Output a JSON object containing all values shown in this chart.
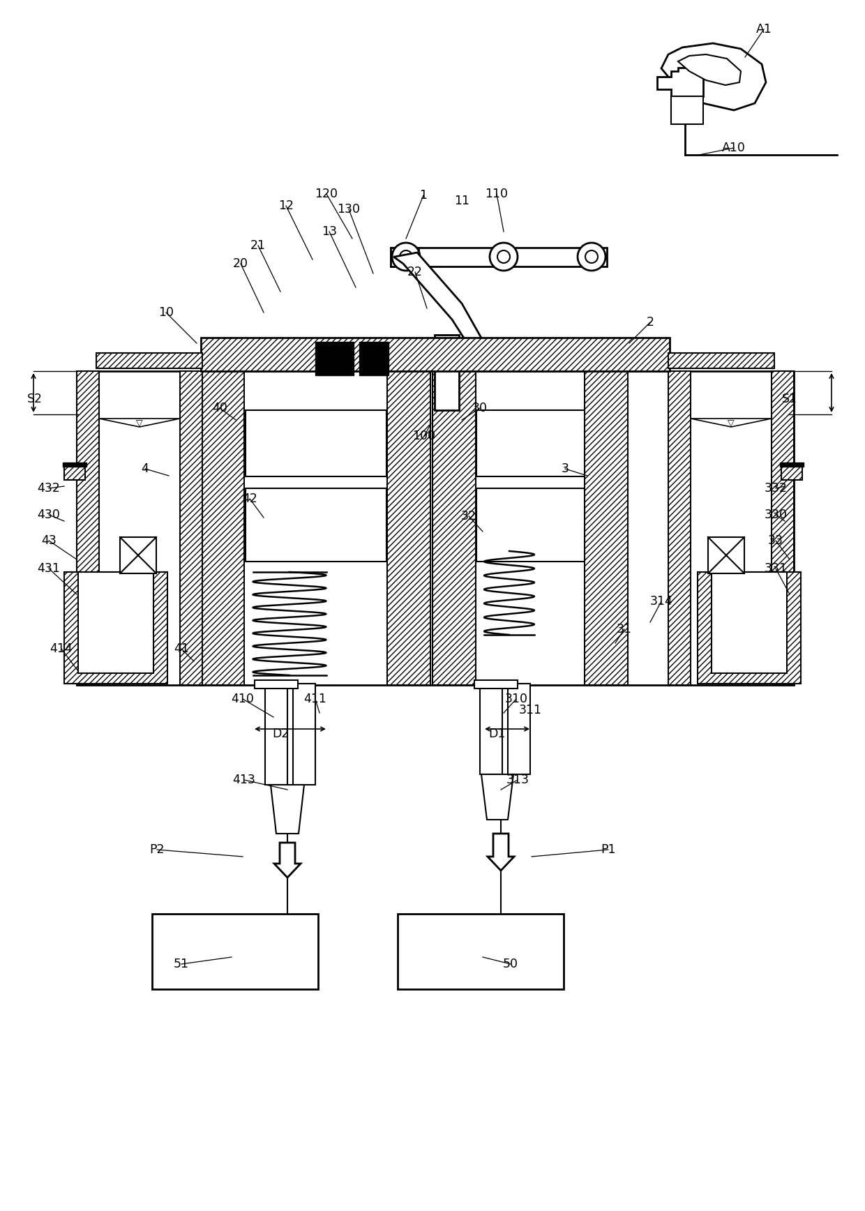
{
  "figsize": [
    12.4,
    17.36
  ],
  "dpi": 100,
  "background_color": "#ffffff",
  "labels": [
    [
      "A1",
      1095,
      42
    ],
    [
      "A10",
      1052,
      212
    ],
    [
      "1",
      607,
      280
    ],
    [
      "11",
      662,
      288
    ],
    [
      "110",
      712,
      278
    ],
    [
      "12",
      410,
      295
    ],
    [
      "120",
      468,
      278
    ],
    [
      "130",
      500,
      300
    ],
    [
      "13",
      472,
      332
    ],
    [
      "21",
      370,
      352
    ],
    [
      "20",
      345,
      378
    ],
    [
      "22",
      595,
      390
    ],
    [
      "10",
      238,
      448
    ],
    [
      "2",
      932,
      462
    ],
    [
      "S2",
      50,
      572
    ],
    [
      "S1",
      1132,
      572
    ],
    [
      "40",
      315,
      585
    ],
    [
      "30",
      688,
      585
    ],
    [
      "100",
      608,
      625
    ],
    [
      "4",
      208,
      672
    ],
    [
      "3",
      810,
      672
    ],
    [
      "42",
      358,
      715
    ],
    [
      "32",
      672,
      740
    ],
    [
      "432",
      70,
      700
    ],
    [
      "430",
      70,
      738
    ],
    [
      "43",
      70,
      775
    ],
    [
      "431",
      70,
      815
    ],
    [
      "330",
      1112,
      738
    ],
    [
      "332",
      1112,
      700
    ],
    [
      "33",
      1112,
      775
    ],
    [
      "331",
      1112,
      815
    ],
    [
      "414",
      88,
      930
    ],
    [
      "41",
      260,
      930
    ],
    [
      "314",
      948,
      862
    ],
    [
      "31",
      895,
      902
    ],
    [
      "410",
      348,
      1002
    ],
    [
      "411",
      452,
      1002
    ],
    [
      "310",
      740,
      1002
    ],
    [
      "311",
      760,
      1018
    ],
    [
      "D2",
      402,
      1052
    ],
    [
      "D1",
      712,
      1052
    ],
    [
      "413",
      350,
      1118
    ],
    [
      "313",
      742,
      1118
    ],
    [
      "P2",
      225,
      1218
    ],
    [
      "P1",
      872,
      1218
    ],
    [
      "51",
      260,
      1382
    ],
    [
      "50",
      732,
      1382
    ]
  ],
  "leader_lines": [
    [
      1095,
      42,
      1068,
      82
    ],
    [
      1052,
      212,
      1002,
      222
    ],
    [
      607,
      280,
      582,
      342
    ],
    [
      712,
      278,
      722,
      332
    ],
    [
      468,
      278,
      505,
      342
    ],
    [
      410,
      295,
      448,
      372
    ],
    [
      500,
      300,
      535,
      392
    ],
    [
      472,
      332,
      510,
      412
    ],
    [
      370,
      352,
      402,
      418
    ],
    [
      345,
      378,
      378,
      448
    ],
    [
      595,
      390,
      612,
      442
    ],
    [
      238,
      448,
      282,
      492
    ],
    [
      932,
      462,
      902,
      492
    ],
    [
      315,
      585,
      338,
      602
    ],
    [
      688,
      585,
      662,
      602
    ],
    [
      608,
      625,
      618,
      607
    ],
    [
      208,
      672,
      242,
      682
    ],
    [
      810,
      672,
      842,
      682
    ],
    [
      358,
      715,
      378,
      742
    ],
    [
      672,
      740,
      692,
      762
    ],
    [
      70,
      700,
      92,
      697
    ],
    [
      70,
      738,
      92,
      747
    ],
    [
      70,
      775,
      110,
      802
    ],
    [
      70,
      815,
      110,
      852
    ],
    [
      1112,
      700,
      1125,
      697
    ],
    [
      1112,
      738,
      1125,
      747
    ],
    [
      1112,
      775,
      1132,
      802
    ],
    [
      1112,
      815,
      1132,
      852
    ],
    [
      88,
      930,
      112,
      962
    ],
    [
      260,
      930,
      278,
      948
    ],
    [
      948,
      862,
      932,
      892
    ],
    [
      895,
      902,
      882,
      922
    ],
    [
      348,
      1002,
      392,
      1028
    ],
    [
      452,
      1002,
      458,
      1022
    ],
    [
      740,
      1002,
      722,
      1022
    ],
    [
      350,
      1118,
      412,
      1132
    ],
    [
      742,
      1118,
      718,
      1132
    ],
    [
      225,
      1218,
      348,
      1228
    ],
    [
      872,
      1218,
      762,
      1228
    ],
    [
      260,
      1382,
      332,
      1372
    ],
    [
      732,
      1382,
      692,
      1372
    ]
  ]
}
